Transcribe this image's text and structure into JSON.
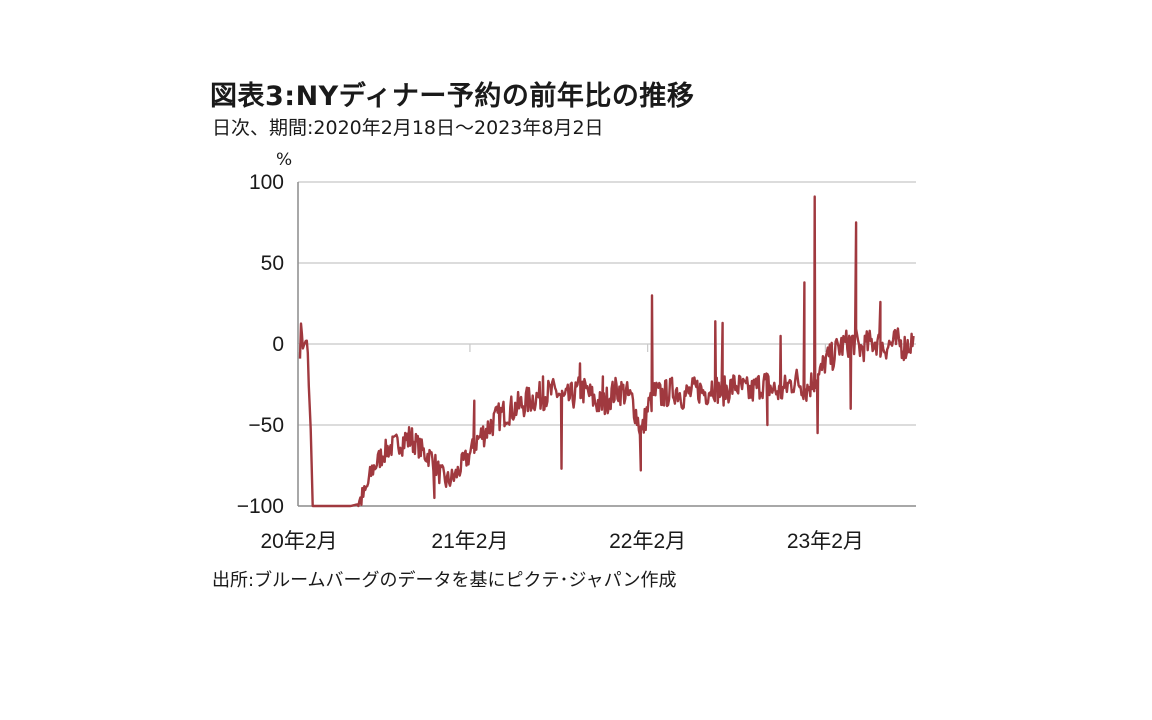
{
  "header": {
    "title": "図表3:NYディナー予約の前年比の推移",
    "subtitle": "日次、期間:2020年2月18日～2023年8月2日",
    "unit": "%"
  },
  "footer": {
    "source": "出所:ブルームバーグのデータを基にピクテ･ジャパン作成"
  },
  "chart_data": {
    "type": "line",
    "title": "図表3:NYディナー予約の前年比の推移",
    "subtitle": "日次、期間:2020年2月18日～2023年8月2日",
    "ylabel": "%",
    "ylim": [
      -100,
      100
    ],
    "yticks": [
      100,
      50,
      0,
      -50,
      -100
    ],
    "xlim": [
      "2020-02-18",
      "2023-08-02"
    ],
    "xticks": [
      {
        "date": "2020-02-01",
        "label": "20年2月"
      },
      {
        "date": "2021-02-01",
        "label": "21年2月"
      },
      {
        "date": "2022-02-01",
        "label": "22年2月"
      },
      {
        "date": "2023-02-01",
        "label": "23年2月"
      }
    ],
    "grid": "horizontal",
    "line_color": "#a0393f",
    "series": [
      {
        "x": [
          "2020-02-18",
          "2020-02-22",
          "2020-02-26",
          "2020-03-01",
          "2020-03-05",
          "2020-03-08",
          "2020-03-11",
          "2020-03-13",
          "2020-03-15",
          "2020-03-17",
          "2020-03-20",
          "2020-04-01",
          "2020-05-01",
          "2020-06-01",
          "2020-06-15",
          "2020-07-01",
          "2020-07-15",
          "2020-08-01",
          "2020-08-15",
          "2020-09-01",
          "2020-09-15",
          "2020-10-01",
          "2020-10-15",
          "2020-11-01",
          "2020-11-15",
          "2020-12-01",
          "2020-12-15",
          "2021-01-01",
          "2021-01-15",
          "2021-02-01",
          "2021-02-15",
          "2021-03-01",
          "2021-03-15",
          "2021-04-01",
          "2021-04-15",
          "2021-05-01",
          "2021-05-15",
          "2021-06-01",
          "2021-06-15",
          "2021-07-01",
          "2021-07-15",
          "2021-08-01",
          "2021-08-15",
          "2021-09-01",
          "2021-09-15",
          "2021-10-01",
          "2021-10-15",
          "2021-11-01",
          "2021-11-15",
          "2021-12-01",
          "2021-12-15",
          "2022-01-01",
          "2022-01-10",
          "2022-01-20",
          "2022-02-01",
          "2022-02-15",
          "2022-03-01",
          "2022-03-15",
          "2022-04-01",
          "2022-04-15",
          "2022-05-01",
          "2022-05-15",
          "2022-06-01",
          "2022-06-15",
          "2022-07-01",
          "2022-07-15",
          "2022-08-01",
          "2022-08-15",
          "2022-09-01",
          "2022-09-15",
          "2022-10-01",
          "2022-10-15",
          "2022-11-01",
          "2022-11-15",
          "2022-12-01",
          "2022-12-15",
          "2022-12-25",
          "2023-01-01",
          "2023-01-10",
          "2023-01-20",
          "2023-02-01",
          "2023-02-15",
          "2023-03-01",
          "2023-03-15",
          "2023-04-01",
          "2023-04-15",
          "2023-05-01",
          "2023-05-15",
          "2023-06-01",
          "2023-06-15",
          "2023-07-01",
          "2023-07-15",
          "2023-08-02"
        ],
        "values": [
          0,
          10,
          -5,
          5,
          -10,
          -35,
          -55,
          -80,
          -97,
          -100,
          -100,
          -100,
          -100,
          -100,
          -99,
          -92,
          -78,
          -70,
          -65,
          -62,
          -60,
          -58,
          -62,
          -68,
          -70,
          -80,
          -85,
          -82,
          -75,
          -68,
          -60,
          -55,
          -50,
          -45,
          -42,
          -40,
          -38,
          -35,
          -33,
          -32,
          -30,
          -30,
          -35,
          -32,
          -28,
          -30,
          -35,
          -38,
          -32,
          -28,
          -30,
          -35,
          -45,
          -55,
          -40,
          -30,
          -32,
          -30,
          -28,
          -32,
          -30,
          -28,
          -30,
          -25,
          -30,
          -28,
          -25,
          -28,
          -30,
          -26,
          -24,
          -28,
          -30,
          -26,
          -22,
          -25,
          -28,
          -25,
          -22,
          -20,
          -10,
          -8,
          -2,
          0,
          2,
          -3,
          0,
          2,
          -2,
          0,
          1,
          -2,
          3
        ],
        "spikes": [
          {
            "x": "2020-11-20",
            "y": -95
          },
          {
            "x": "2021-02-10",
            "y": -35
          },
          {
            "x": "2021-07-01",
            "y": -20
          },
          {
            "x": "2021-08-08",
            "y": -77
          },
          {
            "x": "2021-09-15",
            "y": -12
          },
          {
            "x": "2021-11-01",
            "y": -20
          },
          {
            "x": "2022-01-18",
            "y": -78
          },
          {
            "x": "2022-02-10",
            "y": 30
          },
          {
            "x": "2022-06-20",
            "y": 14
          },
          {
            "x": "2022-07-05",
            "y": 13
          },
          {
            "x": "2022-10-05",
            "y": -50
          },
          {
            "x": "2022-11-01",
            "y": 5
          },
          {
            "x": "2022-12-20",
            "y": 38
          },
          {
            "x": "2023-01-10",
            "y": 91
          },
          {
            "x": "2023-01-16",
            "y": -55
          },
          {
            "x": "2023-04-05",
            "y": 75
          },
          {
            "x": "2023-03-25",
            "y": -40
          },
          {
            "x": "2023-05-25",
            "y": 26
          }
        ]
      }
    ]
  }
}
